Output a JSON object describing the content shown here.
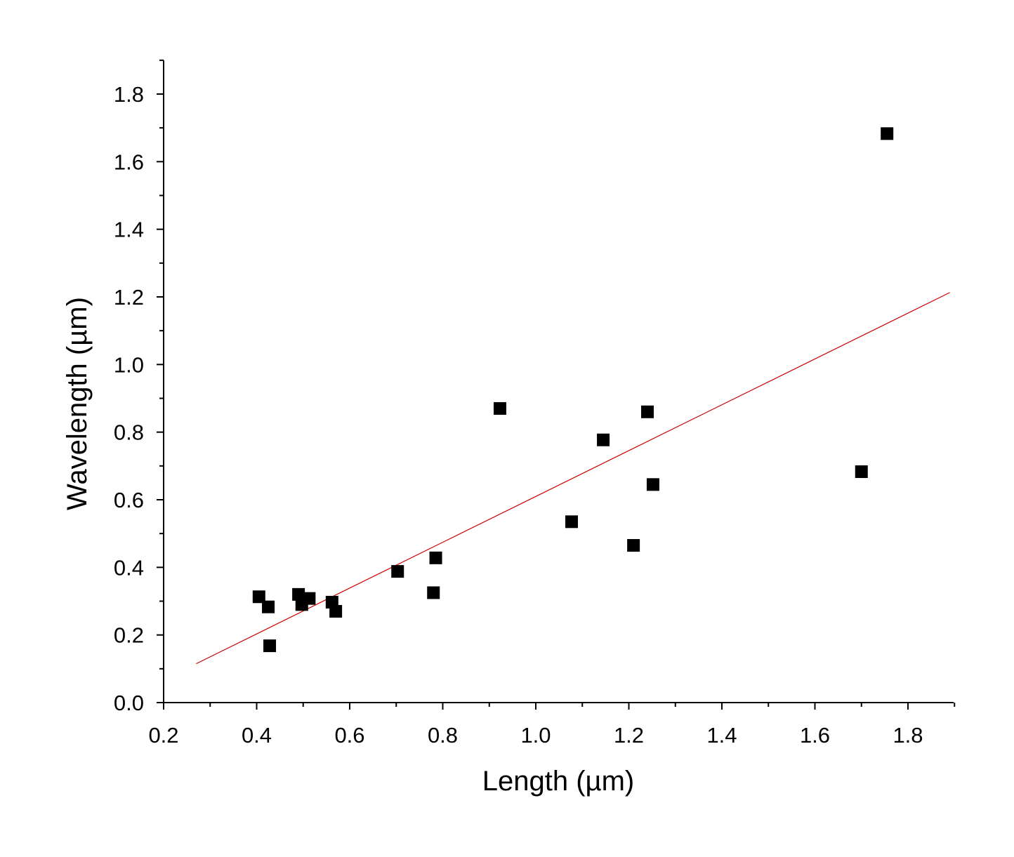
{
  "chart_data": {
    "type": "scatter",
    "xlabel": "Length (µm)",
    "ylabel": "Wavelength (µm)",
    "xlim": [
      0.2,
      1.9
    ],
    "ylim": [
      0.0,
      1.9
    ],
    "x_ticks": [
      "0.2",
      "0.4",
      "0.6",
      "0.8",
      "1.0",
      "1.2",
      "1.4",
      "1.6",
      "1.8"
    ],
    "x_tick_values": [
      0.2,
      0.4,
      0.6,
      0.8,
      1.0,
      1.2,
      1.4,
      1.6,
      1.8
    ],
    "y_ticks": [
      "0.0",
      "0.2",
      "0.4",
      "0.6",
      "0.8",
      "1.0",
      "1.2",
      "1.4",
      "1.6",
      "1.8"
    ],
    "y_tick_values": [
      0.0,
      0.2,
      0.4,
      0.6,
      0.8,
      1.0,
      1.2,
      1.4,
      1.6,
      1.8
    ],
    "grid": false,
    "legend": "none",
    "series": [
      {
        "marker": "square",
        "color": "#000000",
        "points": [
          {
            "x": 0.405,
            "y": 0.313
          },
          {
            "x": 0.425,
            "y": 0.283
          },
          {
            "x": 0.428,
            "y": 0.168
          },
          {
            "x": 0.49,
            "y": 0.32
          },
          {
            "x": 0.497,
            "y": 0.29
          },
          {
            "x": 0.513,
            "y": 0.308
          },
          {
            "x": 0.562,
            "y": 0.297
          },
          {
            "x": 0.57,
            "y": 0.27
          },
          {
            "x": 0.703,
            "y": 0.388
          },
          {
            "x": 0.78,
            "y": 0.325
          },
          {
            "x": 0.785,
            "y": 0.428
          },
          {
            "x": 0.923,
            "y": 0.87
          },
          {
            "x": 1.077,
            "y": 0.535
          },
          {
            "x": 1.145,
            "y": 0.777
          },
          {
            "x": 1.21,
            "y": 0.465
          },
          {
            "x": 1.24,
            "y": 0.86
          },
          {
            "x": 1.252,
            "y": 0.645
          },
          {
            "x": 1.7,
            "y": 0.683
          },
          {
            "x": 1.755,
            "y": 1.683
          }
        ]
      }
    ],
    "fit_line": {
      "color": "#cc0000",
      "x": [
        0.27,
        1.89
      ],
      "y": [
        0.115,
        1.213
      ]
    }
  }
}
